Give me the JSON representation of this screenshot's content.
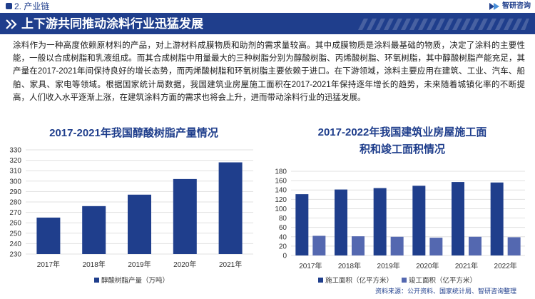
{
  "header": {
    "section_label": "2. 产业链",
    "brand_name": "智研咨询"
  },
  "banner": {
    "title": "上下游共同推动涂料行业迅猛发展"
  },
  "paragraph": {
    "text": "涂料作为一种高度依赖原材料的产品，对上游材料成膜物质和助剂的需求量较高。其中成膜物质是涂料最基础的物质，决定了涂料的主要性能，一般以合成树脂和乳液组成。而其合成树脂中用量最大的三种树脂分别为醇酸树脂、丙烯酸树脂、环氧树脂，其中醇酸树脂产能充足，其产量在2017-2021年间保持良好的增长态势，而丙烯酸树脂和环氧树脂主要依赖于进口。在下游领域，涂料主要应用在建筑、工业、汽车、船舶、家具、家电等领域。根据国家统计局数据，我国建筑业房屋施工面积在2017-2021年保持逐年增长的趋势，未来随着城镇化率的不断提高，人们收入水平逐渐上涨，在建筑涂料方面的需求也将会上升，进而带动涂料行业的迅猛发展。"
  },
  "colors": {
    "brand": "#1f3e8c",
    "bar_primary": "#1f3e8c",
    "bar_secondary": "#5468b0",
    "banner_text": "#ffffff",
    "grid": "#e1e1e1"
  },
  "icons": {
    "section": "square-bullet-icon",
    "brand": "zhiyan-logo-icon",
    "banner": "double-chevron-right-icon"
  },
  "source": "资料来源：公开资料、国家统计局、智研咨询整理",
  "chart_data": [
    {
      "type": "bar",
      "title": "2017-2021年我国醇酸树脂产量情况",
      "categories": [
        "2017年",
        "2018年",
        "2019年",
        "2020年",
        "2021年"
      ],
      "series": [
        {
          "name": "醇酸树脂产量（万吨）",
          "values": [
            265,
            276,
            287,
            302,
            318
          ],
          "color": "#1f3e8c"
        }
      ],
      "ylim": [
        230,
        330
      ],
      "yticks": [
        230,
        240,
        250,
        260,
        270,
        280,
        290,
        300,
        310,
        320,
        330
      ],
      "grid": true,
      "legend": "bottom"
    },
    {
      "type": "bar",
      "title": "2017-2022年我国建筑业房屋施工面积和竣工面积情况",
      "title_lines": [
        "2017-2022年我国建筑业房屋施工面",
        "积和竣工面积情况"
      ],
      "categories": [
        "2017年",
        "2018年",
        "2019年",
        "2020年",
        "2021年",
        "2022年"
      ],
      "series": [
        {
          "name": "施工面积（亿平方米）",
          "values": [
            131,
            141,
            144,
            149,
            157,
            156
          ],
          "color": "#1f3e8c"
        },
        {
          "name": "竣工面积（亿平方米）",
          "values": [
            42,
            41,
            40,
            38,
            40,
            39
          ],
          "color": "#5468b0"
        }
      ],
      "ylim": [
        0,
        180
      ],
      "yticks": [
        0,
        20,
        40,
        60,
        80,
        100,
        120,
        140,
        160,
        180
      ],
      "grid": true,
      "legend": "bottom"
    }
  ]
}
